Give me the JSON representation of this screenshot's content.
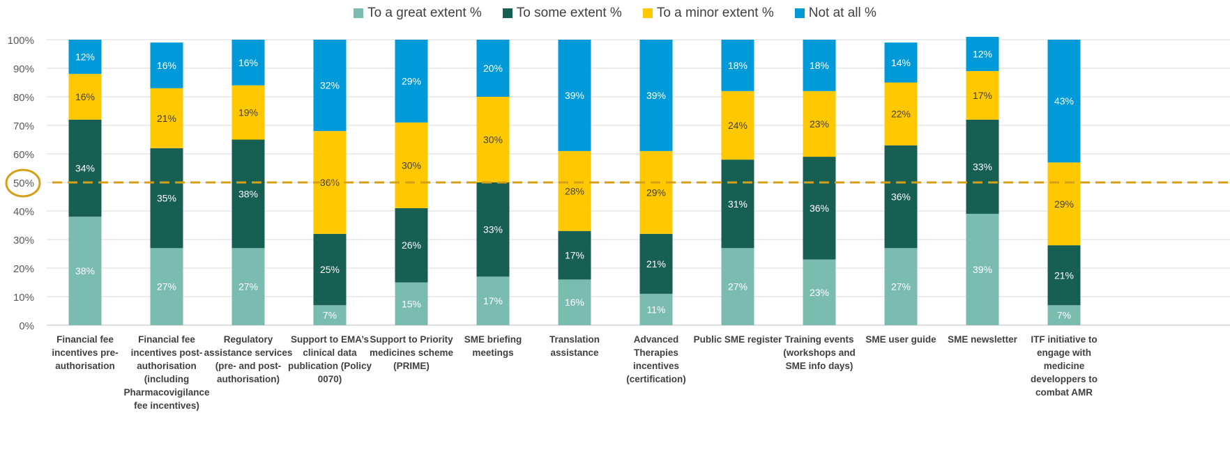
{
  "chart_data": {
    "type": "bar",
    "stacked": true,
    "orientation": "vertical",
    "title": "",
    "xlabel": "",
    "ylabel": "",
    "ylim": [
      0,
      100
    ],
    "yticks": [
      "0%",
      "10%",
      "20%",
      "30%",
      "40%",
      "50%",
      "60%",
      "70%",
      "80%",
      "90%",
      "100%"
    ],
    "grid": true,
    "legend_position": "top-center",
    "reference_line": {
      "value": 50,
      "label": "50%",
      "color": "#d4a017",
      "style": "dashed",
      "highlighted": true
    },
    "categories": [
      "Financial fee incentives pre-authorisation",
      "Financial fee incentives post-authorisation (including Pharmacovigilance fee incentives)",
      "Regulatory assistance services (pre- and post-authorisation)",
      "Support to EMA’s clinical data publication (Policy 0070)",
      "Support to Priority medicines scheme (PRIME)",
      "SME briefing meetings",
      "Translation assistance",
      "Advanced Therapies incentives (certification)",
      "Public SME register",
      "Training events (workshops and SME info days)",
      "SME user guide",
      "SME newsletter",
      "ITF initiative to engage with medicine developpers to combat AMR"
    ],
    "category_lines": [
      [
        "Financial fee",
        "incentives pre-",
        "authorisation"
      ],
      [
        "Financial fee",
        "incentives post-",
        "authorisation",
        "(including",
        "Pharmacovigilance",
        "fee incentives)"
      ],
      [
        "Regulatory",
        "assistance services",
        "(pre- and post-",
        "authorisation)"
      ],
      [
        "Support to EMA’s",
        "clinical data",
        "publication (Policy",
        "0070)"
      ],
      [
        "Support to Priority",
        "medicines scheme",
        "(PRIME)"
      ],
      [
        "SME briefing",
        "meetings"
      ],
      [
        "Translation",
        "assistance"
      ],
      [
        "Advanced",
        "Therapies",
        "incentives",
        "(certification)"
      ],
      [
        "Public SME register"
      ],
      [
        "Training events",
        "(workshops and",
        "SME info days)"
      ],
      [
        "SME user guide"
      ],
      [
        "SME newsletter"
      ],
      [
        "ITF initiative to",
        "engage with",
        "medicine",
        "developpers to",
        "combat AMR"
      ]
    ],
    "series": [
      {
        "name": "To a great extent %",
        "color": "#7bbcb0",
        "values": [
          38,
          27,
          27,
          7,
          15,
          17,
          16,
          11,
          27,
          23,
          27,
          39,
          7
        ]
      },
      {
        "name": "To some extent %",
        "color": "#175e53",
        "values": [
          34,
          35,
          38,
          25,
          26,
          33,
          17,
          21,
          31,
          36,
          36,
          33,
          21
        ]
      },
      {
        "name": "To a minor extent %",
        "color": "#ffc800",
        "values": [
          16,
          21,
          19,
          36,
          30,
          30,
          28,
          29,
          24,
          23,
          22,
          17,
          29
        ]
      },
      {
        "name": "Not at all %",
        "color": "#009ad9",
        "values": [
          12,
          16,
          16,
          32,
          29,
          20,
          39,
          39,
          18,
          18,
          14,
          12,
          43
        ]
      }
    ]
  }
}
